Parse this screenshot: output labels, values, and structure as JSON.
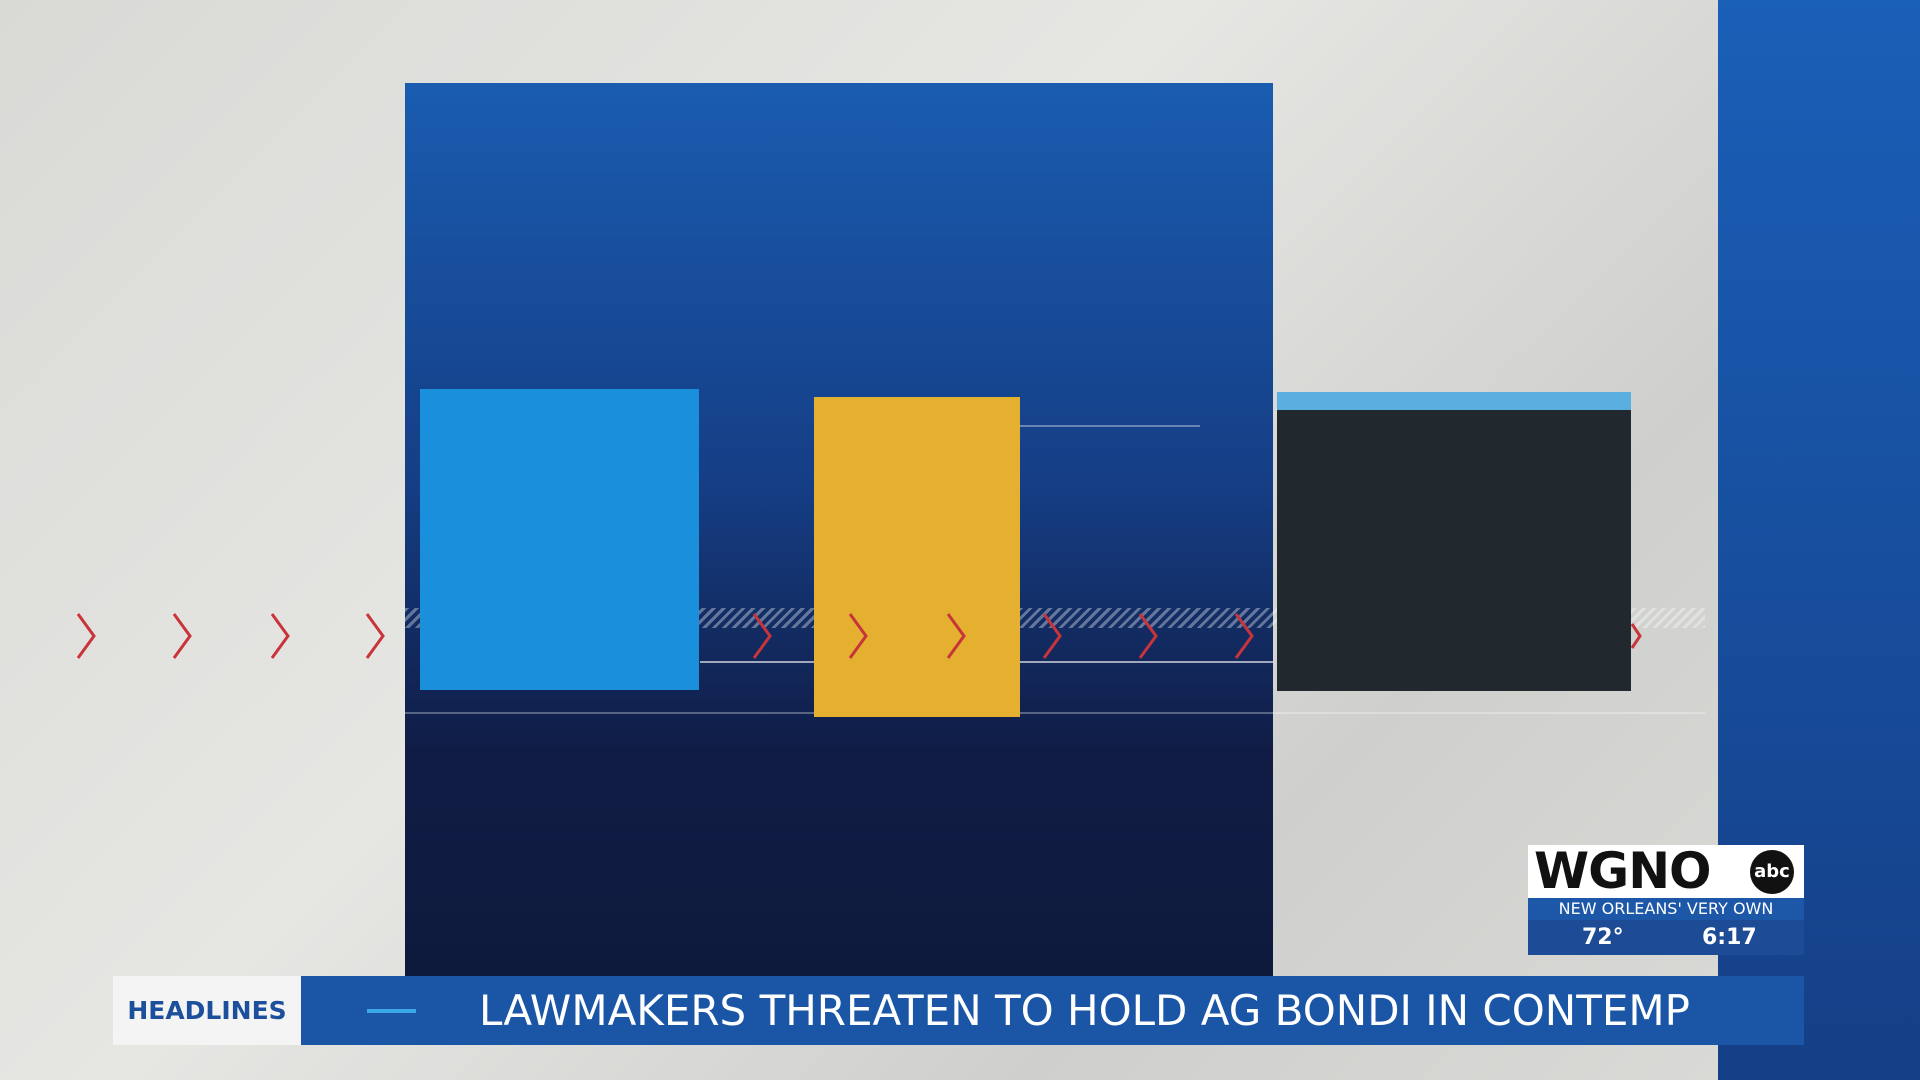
{
  "ticker": {
    "label": "HEADLINES",
    "headline": "LAWMAKERS THREATEN TO HOLD AG BONDI IN CONTEMP"
  },
  "logo": {
    "station": "WGNO",
    "network": "abc",
    "slogan": "NEW ORLEANS' VERY OWN"
  },
  "status": {
    "temperature": "72°",
    "time": "6:17"
  }
}
